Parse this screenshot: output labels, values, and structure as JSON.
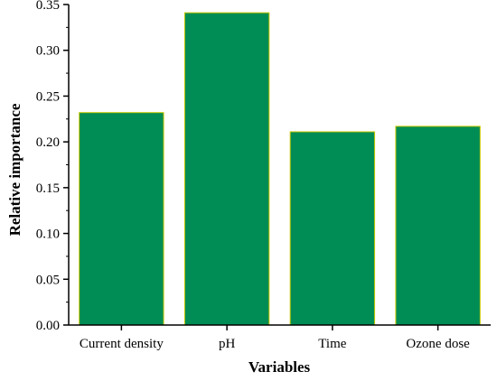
{
  "chart_data": {
    "type": "bar",
    "title": "",
    "xlabel": "Variables",
    "ylabel": "Relative importance",
    "categories": [
      "Current density",
      "pH",
      "Time",
      "Ozone dose"
    ],
    "values": [
      0.232,
      0.341,
      0.211,
      0.217
    ],
    "ylim": [
      0,
      0.35
    ],
    "yticks": [
      "0.00",
      "0.05",
      "0.10",
      "0.15",
      "0.20",
      "0.25",
      "0.30",
      "0.35"
    ],
    "grid": false,
    "legend": "none",
    "colors": {
      "bar_fill": "#008C55",
      "bar_stroke": "#C8C800",
      "axis": "#000000"
    }
  }
}
